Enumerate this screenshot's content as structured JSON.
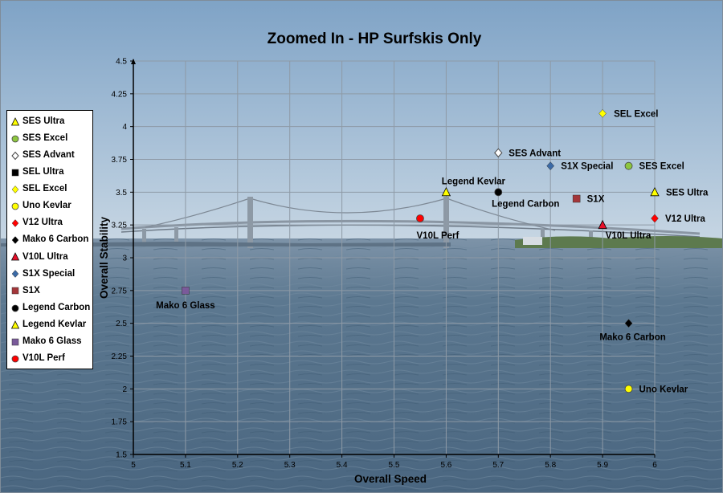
{
  "chart_data": {
    "type": "scatter",
    "title": "Zoomed In - HP Surfskis Only",
    "xlabel": "Overall Speed",
    "ylabel": "Overall Stability",
    "xlim": [
      5,
      6
    ],
    "ylim": [
      1.5,
      4.5
    ],
    "x_ticks": [
      "5",
      "5.1",
      "5.2",
      "5.3",
      "5.4",
      "5.5",
      "5.6",
      "5.7",
      "5.8",
      "5.9",
      "6"
    ],
    "y_ticks": [
      "1.5",
      "1.75",
      "2",
      "2.25",
      "2.5",
      "2.75",
      "3",
      "3.25",
      "3.5",
      "3.75",
      "4",
      "4.25",
      "4.5"
    ],
    "grid": true,
    "legend_position": "left",
    "series": [
      {
        "name": "SES Ultra",
        "marker": "triangle",
        "color": "#ffff00",
        "x": 6.0,
        "y": 3.5
      },
      {
        "name": "SES Excel",
        "marker": "circle",
        "color": "#8dc63f",
        "x": 5.95,
        "y": 3.7
      },
      {
        "name": "SES Advant",
        "marker": "diamond-open",
        "color": "#ffffff",
        "x": 5.7,
        "y": 3.8
      },
      {
        "name": "SEL Ultra",
        "marker": "square",
        "color": "#000000",
        "x": null,
        "y": null
      },
      {
        "name": "SEL Excel",
        "marker": "diamond",
        "color": "#ffff00",
        "x": 5.9,
        "y": 4.1
      },
      {
        "name": "Uno Kevlar",
        "marker": "circle",
        "color": "#ffff00",
        "x": 5.95,
        "y": 2.0
      },
      {
        "name": "V12 Ultra",
        "marker": "diamond",
        "color": "#ff0000",
        "x": 6.0,
        "y": 3.3
      },
      {
        "name": "Mako 6 Carbon",
        "marker": "diamond",
        "color": "#000000",
        "x": 5.95,
        "y": 2.5
      },
      {
        "name": "V10L Ultra",
        "marker": "triangle",
        "color": "#e8102a",
        "x": 5.9,
        "y": 3.25
      },
      {
        "name": "S1X Special",
        "marker": "diamond",
        "color": "#3b6aa6",
        "x": 5.8,
        "y": 3.7
      },
      {
        "name": "S1X",
        "marker": "square",
        "color": "#a4363a",
        "x": 5.85,
        "y": 3.45
      },
      {
        "name": "Legend Carbon",
        "marker": "circle",
        "color": "#000000",
        "x": 5.7,
        "y": 3.5
      },
      {
        "name": "Legend Kevlar",
        "marker": "triangle",
        "color": "#ffff00",
        "x": 5.6,
        "y": 3.5
      },
      {
        "name": "Mako 6 Glass",
        "marker": "square",
        "color": "#7a5a9a",
        "x": 5.1,
        "y": 2.75
      },
      {
        "name": "V10L Perf",
        "marker": "circle",
        "color": "#ff0000",
        "x": 5.55,
        "y": 3.3
      }
    ]
  }
}
